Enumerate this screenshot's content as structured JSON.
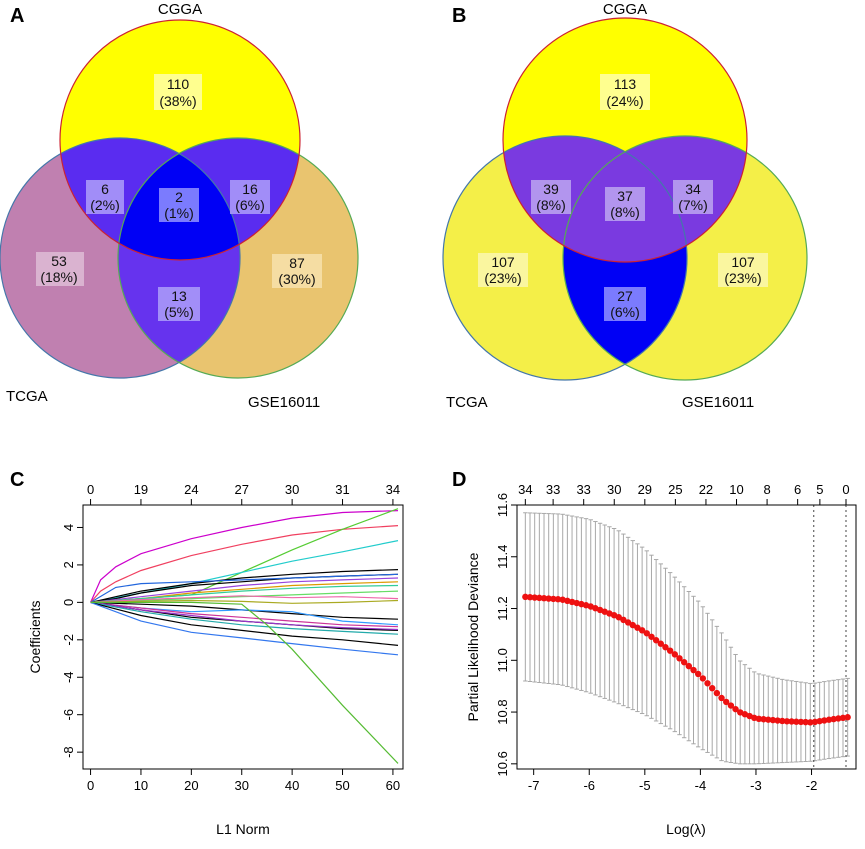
{
  "panels": {
    "A": "A",
    "B": "B",
    "C": "C",
    "D": "D"
  },
  "venn_labels": {
    "top": "CGGA",
    "left": "TCGA",
    "right": "GSE16011"
  },
  "chart_data": [
    {
      "type": "venn",
      "panel": "A",
      "sets": [
        "CGGA",
        "TCGA",
        "GSE16011"
      ],
      "regions": {
        "cgga_only": {
          "count": "110",
          "pct": "(38%)"
        },
        "cgga_tcga": {
          "count": "6",
          "pct": "(2%)"
        },
        "all": {
          "count": "2",
          "pct": "(1%)"
        },
        "cgga_gse": {
          "count": "16",
          "pct": "(6%)"
        },
        "tcga_only": {
          "count": "53",
          "pct": "(18%)"
        },
        "gse_only": {
          "count": "87",
          "pct": "(30%)"
        },
        "tcga_gse": {
          "count": "13",
          "pct": "(5%)"
        }
      },
      "colors": {
        "cgga": "#ffff00",
        "tcga": "#c080b0",
        "gse": "#e9c46f",
        "pair": "#6633ee",
        "center": "#0000f5"
      }
    },
    {
      "type": "venn",
      "panel": "B",
      "sets": [
        "CGGA",
        "TCGA",
        "GSE16011"
      ],
      "regions": {
        "cgga_only": {
          "count": "113",
          "pct": "(24%)"
        },
        "cgga_tcga": {
          "count": "39",
          "pct": "(8%)"
        },
        "all": {
          "count": "37",
          "pct": "(8%)"
        },
        "cgga_gse": {
          "count": "34",
          "pct": "(7%)"
        },
        "tcga_only": {
          "count": "107",
          "pct": "(23%)"
        },
        "gse_only": {
          "count": "107",
          "pct": "(23%)"
        },
        "tcga_gse": {
          "count": "27",
          "pct": "(6%)"
        }
      },
      "colors": {
        "cgga": "#ffff00",
        "tcga": "#f4ef48",
        "gse": "#f4ef48",
        "pair": "#7a3ae0",
        "center": "#7a3ae0",
        "tg": "#0000f5"
      }
    },
    {
      "type": "line",
      "panel": "C",
      "xlabel": "L1 Norm",
      "ylabel": "Coefficients",
      "xlim": [
        -1.5,
        62
      ],
      "ylim": [
        -8.9,
        5.2
      ],
      "xticks": [
        "0",
        "10",
        "20",
        "30",
        "40",
        "50",
        "60"
      ],
      "xtick_values": [
        0,
        10,
        20,
        30,
        40,
        50,
        60
      ],
      "yticks": [
        "4",
        "2",
        "0",
        "-2",
        "-4",
        "-6",
        "-8"
      ],
      "ytick_values": [
        4,
        2,
        0,
        -2,
        -4,
        -6,
        -8
      ],
      "top_ticks": [
        "0",
        "19",
        "24",
        "27",
        "30",
        "31",
        "34"
      ],
      "top_tick_values": [
        0,
        10,
        20,
        30,
        40,
        50,
        60
      ],
      "series": [
        {
          "color": "#cc00cc",
          "points": [
            [
              0,
              0
            ],
            [
              2,
              1.2
            ],
            [
              5,
              1.9
            ],
            [
              10,
              2.6
            ],
            [
              20,
              3.4
            ],
            [
              30,
              4.0
            ],
            [
              40,
              4.5
            ],
            [
              50,
              4.8
            ],
            [
              61,
              4.9
            ]
          ]
        },
        {
          "color": "#f04060",
          "points": [
            [
              0,
              0
            ],
            [
              2,
              0.6
            ],
            [
              5,
              1.1
            ],
            [
              10,
              1.7
            ],
            [
              20,
              2.5
            ],
            [
              30,
              3.1
            ],
            [
              40,
              3.6
            ],
            [
              50,
              3.9
            ],
            [
              61,
              4.1
            ]
          ]
        },
        {
          "color": "#55cc33",
          "points": [
            [
              0,
              0
            ],
            [
              10,
              0.2
            ],
            [
              20,
              0.4
            ],
            [
              30,
              1.6
            ],
            [
              40,
              2.8
            ],
            [
              50,
              3.9
            ],
            [
              61,
              5.0
            ]
          ]
        },
        {
          "color": "#22cccc",
          "points": [
            [
              0,
              0
            ],
            [
              10,
              0.5
            ],
            [
              20,
              1.0
            ],
            [
              30,
              1.6
            ],
            [
              40,
              2.2
            ],
            [
              50,
              2.7
            ],
            [
              61,
              3.3
            ]
          ]
        },
        {
          "color": "#000000",
          "points": [
            [
              0,
              0
            ],
            [
              5,
              0.3
            ],
            [
              10,
              0.6
            ],
            [
              20,
              1.0
            ],
            [
              30,
              1.3
            ],
            [
              40,
              1.5
            ],
            [
              50,
              1.65
            ],
            [
              61,
              1.75
            ]
          ]
        },
        {
          "color": "#000000",
          "points": [
            [
              0,
              0
            ],
            [
              5,
              0.2
            ],
            [
              10,
              0.5
            ],
            [
              20,
              0.9
            ],
            [
              30,
              1.1
            ],
            [
              40,
              1.3
            ],
            [
              50,
              1.4
            ],
            [
              61,
              1.5
            ]
          ]
        },
        {
          "color": "#2266dd",
          "points": [
            [
              0,
              0
            ],
            [
              5,
              0.8
            ],
            [
              10,
              1.0
            ],
            [
              20,
              1.1
            ],
            [
              30,
              1.2
            ],
            [
              40,
              1.3
            ],
            [
              50,
              1.4
            ],
            [
              61,
              1.5
            ]
          ]
        },
        {
          "color": "#9944dd",
          "points": [
            [
              0,
              0
            ],
            [
              10,
              0.3
            ],
            [
              20,
              0.6
            ],
            [
              30,
              0.9
            ],
            [
              40,
              1.1
            ],
            [
              50,
              1.2
            ],
            [
              61,
              1.3
            ]
          ]
        },
        {
          "color": "#dd9900",
          "points": [
            [
              0,
              0
            ],
            [
              10,
              0.2
            ],
            [
              20,
              0.5
            ],
            [
              30,
              0.7
            ],
            [
              40,
              0.9
            ],
            [
              50,
              1.0
            ],
            [
              61,
              1.1
            ]
          ]
        },
        {
          "color": "#33cc99",
          "points": [
            [
              0,
              0
            ],
            [
              10,
              0.2
            ],
            [
              20,
              0.4
            ],
            [
              30,
              0.6
            ],
            [
              40,
              0.75
            ],
            [
              50,
              0.85
            ],
            [
              61,
              0.9
            ]
          ]
        },
        {
          "color": "#66dd66",
          "points": [
            [
              0,
              0
            ],
            [
              10,
              0.1
            ],
            [
              20,
              0.2
            ],
            [
              30,
              0.3
            ],
            [
              40,
              0.4
            ],
            [
              50,
              0.5
            ],
            [
              61,
              0.6
            ]
          ]
        },
        {
          "color": "#ee66aa",
          "points": [
            [
              0,
              0
            ],
            [
              10,
              0.15
            ],
            [
              20,
              0.25
            ],
            [
              30,
              0.35
            ],
            [
              40,
              0.25
            ],
            [
              50,
              0.3
            ],
            [
              61,
              0.2
            ]
          ]
        },
        {
          "color": "#aaaa22",
          "points": [
            [
              0,
              0
            ],
            [
              10,
              0.05
            ],
            [
              20,
              0.1
            ],
            [
              30,
              0.05
            ],
            [
              40,
              -0.05
            ],
            [
              50,
              0.0
            ],
            [
              61,
              0.1
            ]
          ]
        },
        {
          "color": "#000000",
          "points": [
            [
              0,
              0
            ],
            [
              10,
              -0.1
            ],
            [
              20,
              -0.2
            ],
            [
              30,
              -0.4
            ],
            [
              40,
              -0.6
            ],
            [
              50,
              -0.8
            ],
            [
              61,
              -0.9
            ]
          ]
        },
        {
          "color": "#3399ff",
          "points": [
            [
              0,
              0
            ],
            [
              10,
              -0.3
            ],
            [
              20,
              -0.5
            ],
            [
              30,
              -0.4
            ],
            [
              40,
              -0.5
            ],
            [
              50,
              -1.0
            ],
            [
              61,
              -1.2
            ]
          ]
        },
        {
          "color": "#cc3399",
          "points": [
            [
              0,
              0
            ],
            [
              10,
              -0.3
            ],
            [
              20,
              -0.6
            ],
            [
              30,
              -0.8
            ],
            [
              40,
              -1.0
            ],
            [
              50,
              -1.2
            ],
            [
              61,
              -1.3
            ]
          ]
        },
        {
          "color": "#000000",
          "points": [
            [
              0,
              0
            ],
            [
              10,
              -0.4
            ],
            [
              20,
              -0.8
            ],
            [
              30,
              -1.0
            ],
            [
              40,
              -1.2
            ],
            [
              50,
              -1.4
            ],
            [
              61,
              -1.5
            ]
          ]
        },
        {
          "color": "#9933cc",
          "points": [
            [
              0,
              0
            ],
            [
              10,
              -0.4
            ],
            [
              20,
              -0.7
            ],
            [
              30,
              -1.0
            ],
            [
              40,
              -1.2
            ],
            [
              50,
              -1.35
            ],
            [
              61,
              -1.45
            ]
          ]
        },
        {
          "color": "#22aaaa",
          "points": [
            [
              0,
              0
            ],
            [
              10,
              -0.5
            ],
            [
              20,
              -0.9
            ],
            [
              30,
              -1.2
            ],
            [
              40,
              -1.4
            ],
            [
              50,
              -1.55
            ],
            [
              61,
              -1.7
            ]
          ]
        },
        {
          "color": "#000000",
          "points": [
            [
              0,
              0
            ],
            [
              10,
              -0.7
            ],
            [
              20,
              -1.2
            ],
            [
              30,
              -1.5
            ],
            [
              40,
              -1.8
            ],
            [
              50,
              -2.0
            ],
            [
              61,
              -2.3
            ]
          ]
        },
        {
          "color": "#3377ee",
          "points": [
            [
              0,
              0
            ],
            [
              10,
              -1.0
            ],
            [
              20,
              -1.6
            ],
            [
              30,
              -1.9
            ],
            [
              40,
              -2.2
            ],
            [
              50,
              -2.5
            ],
            [
              61,
              -2.8
            ]
          ]
        },
        {
          "color": "#55bb33",
          "points": [
            [
              0,
              0
            ],
            [
              10,
              0.0
            ],
            [
              20,
              0.0
            ],
            [
              30,
              -0.1
            ],
            [
              35,
              -1.2
            ],
            [
              40,
              -2.5
            ],
            [
              50,
              -5.5
            ],
            [
              61,
              -8.6
            ]
          ]
        }
      ]
    },
    {
      "type": "scatter",
      "panel": "D",
      "xlabel": "Log(λ)",
      "ylabel": "Partial Likelihood Deviance",
      "xlim": [
        -7.3,
        -1.2
      ],
      "ylim": [
        10.58,
        11.6
      ],
      "xticks": [
        "-7",
        "-6",
        "-5",
        "-4",
        "-3",
        "-2"
      ],
      "xtick_values": [
        -7,
        -6,
        -5,
        -4,
        -3,
        -2
      ],
      "yticks": [
        "11.6",
        "11.4",
        "11.2",
        "11.0",
        "10.8",
        "10.6"
      ],
      "ytick_values": [
        11.6,
        11.4,
        11.2,
        11.0,
        10.8,
        10.6
      ],
      "top_ticks": [
        "34",
        "33",
        "33",
        "30",
        "29",
        "25",
        "22",
        "10",
        "8",
        "6",
        "5",
        "0"
      ],
      "top_tick_values": [
        -7.15,
        -6.65,
        -6.1,
        -5.55,
        -5.0,
        -4.45,
        -3.9,
        -3.35,
        -2.8,
        -2.25,
        -1.85,
        -1.38
      ],
      "vlines": [
        -1.96,
        -1.38
      ],
      "x_start": -7.15,
      "x_end": -1.35,
      "n_points": 70,
      "curve": [
        [
          -7.15,
          11.245
        ],
        [
          -6.5,
          11.235
        ],
        [
          -6.0,
          11.21
        ],
        [
          -5.5,
          11.17
        ],
        [
          -5.0,
          11.11
        ],
        [
          -4.5,
          11.03
        ],
        [
          -4.0,
          10.94
        ],
        [
          -3.6,
          10.85
        ],
        [
          -3.3,
          10.8
        ],
        [
          -3.0,
          10.775
        ],
        [
          -2.5,
          10.765
        ],
        [
          -2.0,
          10.76
        ],
        [
          -1.7,
          10.77
        ],
        [
          -1.35,
          10.78
        ]
      ],
      "upper": [
        [
          -7.15,
          11.57
        ],
        [
          -6.5,
          11.565
        ],
        [
          -6.0,
          11.545
        ],
        [
          -5.5,
          11.505
        ],
        [
          -5.0,
          11.43
        ],
        [
          -4.5,
          11.33
        ],
        [
          -4.0,
          11.22
        ],
        [
          -3.6,
          11.1
        ],
        [
          -3.3,
          11.0
        ],
        [
          -3.0,
          10.95
        ],
        [
          -2.5,
          10.925
        ],
        [
          -2.0,
          10.91
        ],
        [
          -1.7,
          10.92
        ],
        [
          -1.35,
          10.93
        ]
      ],
      "lower": [
        [
          -7.15,
          10.92
        ],
        [
          -6.5,
          10.905
        ],
        [
          -6.0,
          10.875
        ],
        [
          -5.5,
          10.835
        ],
        [
          -5.0,
          10.79
        ],
        [
          -4.5,
          10.73
        ],
        [
          -4.0,
          10.66
        ],
        [
          -3.6,
          10.61
        ],
        [
          -3.3,
          10.6
        ],
        [
          -3.0,
          10.6
        ],
        [
          -2.5,
          10.605
        ],
        [
          -2.0,
          10.61
        ],
        [
          -1.7,
          10.62
        ],
        [
          -1.35,
          10.63
        ]
      ]
    }
  ]
}
